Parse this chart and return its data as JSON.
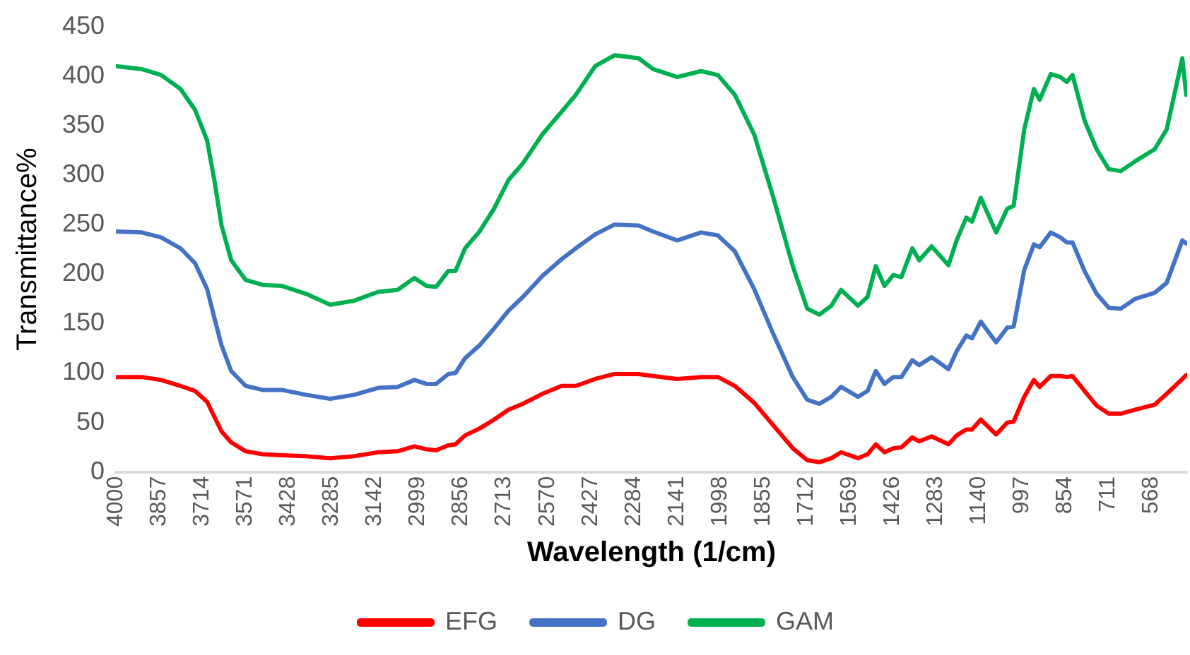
{
  "chart_data": {
    "type": "line",
    "xlabel": "Wavelength (1/cm)",
    "ylabel": "Transmittance%",
    "xlim": [
      4000,
      450
    ],
    "xticks": [
      4000,
      3857,
      3714,
      3571,
      3428,
      3285,
      3142,
      2999,
      2856,
      2713,
      2570,
      2427,
      2284,
      2141,
      1998,
      1855,
      1712,
      1569,
      1426,
      1283,
      1140,
      997,
      854,
      711,
      568
    ],
    "ylim": [
      0,
      450
    ],
    "yticks": [
      0,
      50,
      100,
      150,
      200,
      250,
      300,
      350,
      400,
      450
    ],
    "grid": false,
    "legend": "bottom",
    "marker": "none",
    "line_style": "solid",
    "x": [
      4000,
      3914,
      3850,
      3786,
      3738,
      3698,
      3674,
      3650,
      3618,
      3570,
      3514,
      3450,
      3370,
      3290,
      3211,
      3131,
      3067,
      3011,
      2971,
      2939,
      2899,
      2875,
      2843,
      2795,
      2747,
      2699,
      2651,
      2587,
      2523,
      2476,
      2412,
      2348,
      2268,
      2220,
      2140,
      2061,
      2005,
      1949,
      1885,
      1821,
      1757,
      1709,
      1669,
      1629,
      1597,
      1541,
      1509,
      1482,
      1453,
      1424,
      1397,
      1361,
      1338,
      1297,
      1241,
      1214,
      1182,
      1163,
      1134,
      1083,
      1046,
      1025,
      990,
      958,
      939,
      902,
      870,
      849,
      830,
      790,
      750,
      710,
      670,
      622,
      558,
      518,
      466,
      453
    ],
    "series": [
      {
        "name": "EFG",
        "color": "#ff0000",
        "values": [
          96,
          96,
          93,
          87,
          82,
          71,
          56,
          41,
          30,
          21,
          18,
          17,
          16,
          14,
          16,
          20,
          21,
          26,
          23,
          22,
          27,
          28,
          37,
          44,
          53,
          63,
          69,
          79,
          87,
          87,
          94,
          99,
          99,
          97,
          94,
          96,
          96,
          87,
          70,
          47,
          24,
          12,
          10,
          14,
          20,
          14,
          18,
          28,
          20,
          24,
          25,
          35,
          31,
          36,
          28,
          37,
          43,
          43,
          53,
          38,
          50,
          51,
          76,
          93,
          86,
          97,
          97,
          96,
          97,
          82,
          67,
          59,
          59,
          63,
          68,
          79,
          94,
          98
        ]
      },
      {
        "name": "DG",
        "color": "#4472c4",
        "values": [
          243,
          242,
          237,
          226,
          211,
          185,
          156,
          128,
          102,
          87,
          83,
          83,
          78,
          74,
          78,
          85,
          86,
          93,
          89,
          89,
          99,
          100,
          115,
          128,
          145,
          163,
          177,
          198,
          215,
          226,
          240,
          250,
          249,
          243,
          234,
          242,
          239,
          223,
          185,
          139,
          96,
          73,
          69,
          76,
          86,
          76,
          82,
          102,
          89,
          96,
          96,
          113,
          108,
          116,
          104,
          122,
          138,
          135,
          152,
          131,
          146,
          147,
          204,
          230,
          227,
          242,
          237,
          232,
          232,
          203,
          180,
          166,
          165,
          175,
          181,
          191,
          234,
          231
        ]
      },
      {
        "name": "GAM",
        "color": "#00b050",
        "values": [
          410,
          407,
          401,
          387,
          366,
          335,
          295,
          249,
          214,
          194,
          189,
          188,
          180,
          169,
          173,
          182,
          184,
          196,
          188,
          187,
          203,
          203,
          226,
          243,
          266,
          295,
          312,
          341,
          364,
          381,
          410,
          421,
          418,
          407,
          399,
          405,
          401,
          381,
          341,
          277,
          208,
          165,
          159,
          168,
          184,
          168,
          177,
          208,
          188,
          199,
          197,
          226,
          214,
          228,
          209,
          234,
          257,
          253,
          277,
          242,
          266,
          269,
          346,
          387,
          376,
          402,
          399,
          394,
          401,
          355,
          326,
          306,
          304,
          314,
          326,
          346,
          418,
          381
        ]
      }
    ]
  }
}
